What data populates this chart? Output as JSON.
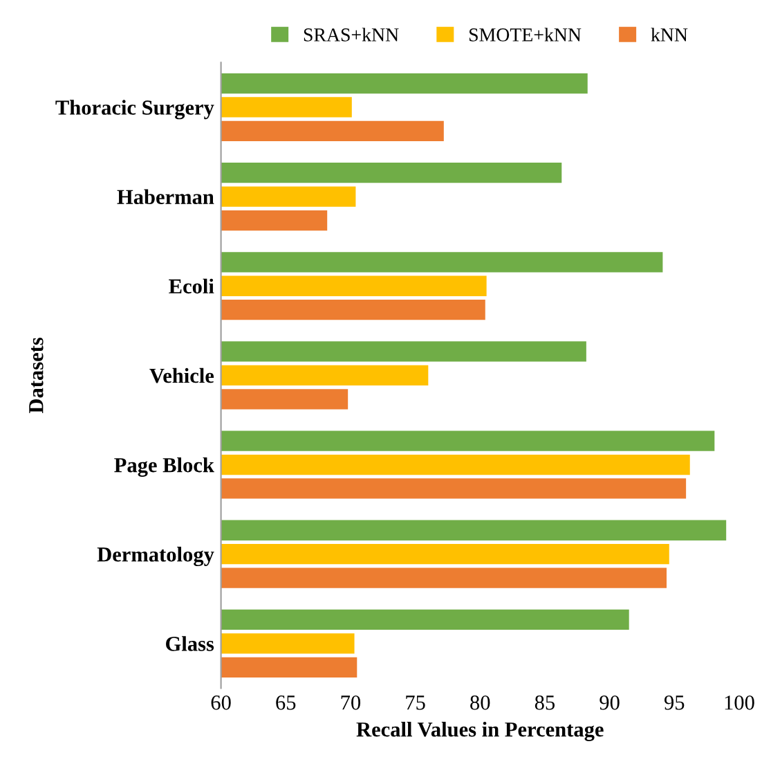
{
  "chart_data": {
    "type": "bar",
    "orientation": "horizontal",
    "xlabel": "Recall Values in Percentage",
    "ylabel": "Datasets",
    "categories": [
      "Thoracic Surgery",
      "Haberman",
      "Ecoli",
      "Vehicle",
      "Page Block",
      "Dermatology",
      "Glass"
    ],
    "series": [
      {
        "name": "SRAS+kNN",
        "color": "#70ad47",
        "values": [
          88.3,
          86.3,
          94.1,
          88.2,
          98.1,
          99.0,
          91.5
        ]
      },
      {
        "name": "SMOTE+kNN",
        "color": "#ffc000",
        "values": [
          70.1,
          70.4,
          80.5,
          76.0,
          96.2,
          94.6,
          70.3
        ]
      },
      {
        "name": "kNN",
        "color": "#ed7d31",
        "values": [
          77.2,
          68.2,
          80.4,
          69.8,
          95.9,
          94.4,
          70.5
        ]
      }
    ],
    "xlim": [
      60,
      100
    ],
    "xticks": [
      60,
      65,
      70,
      75,
      80,
      85,
      90,
      95,
      100
    ],
    "grid": false,
    "legend": "top"
  }
}
